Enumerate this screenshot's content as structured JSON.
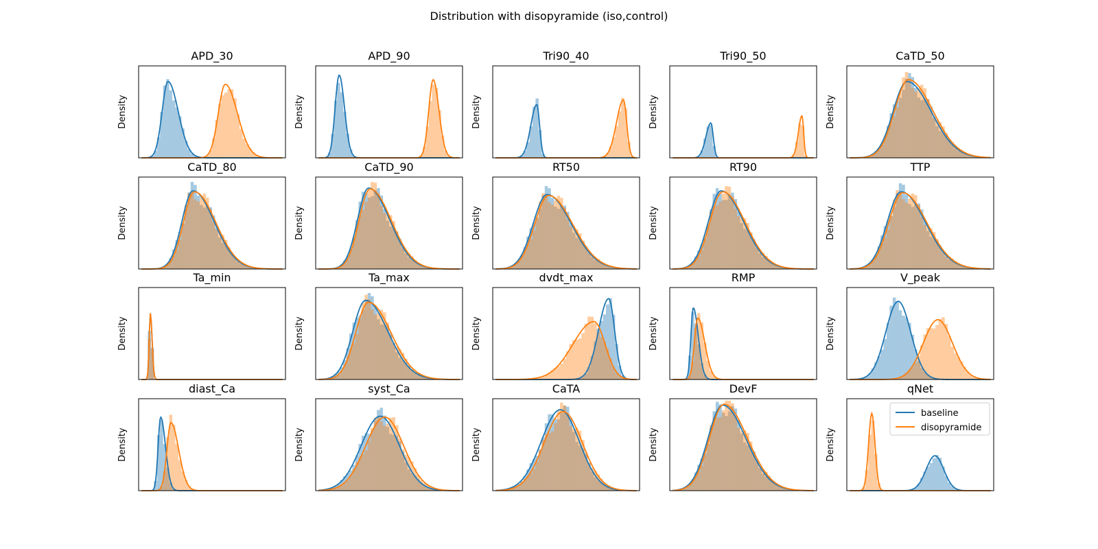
{
  "chart_data": {
    "type": "histogram-kde-grid",
    "title": "Distribution with disopyramide (iso,control)",
    "ylabel": "Density",
    "grid": false,
    "legend": {
      "placement": "upper-right",
      "panel": "qNet"
    },
    "series": [
      {
        "name": "baseline",
        "color": "#1f77b4"
      },
      {
        "name": "disopyramide",
        "color": "#ff7f0e"
      }
    ],
    "x_domain": [
      0,
      1
    ],
    "panels": [
      {
        "title": "APD_30",
        "baseline": {
          "mu": 0.2,
          "sd": 0.055,
          "peak": 0.83,
          "skew": 0.6
        },
        "disopyramide": {
          "mu": 0.59,
          "sd": 0.065,
          "peak": 0.8,
          "skew": 0.6
        }
      },
      {
        "title": "APD_90",
        "baseline": {
          "mu": 0.16,
          "sd": 0.032,
          "peak": 0.9,
          "skew": 0.3
        },
        "disopyramide": {
          "mu": 0.8,
          "sd": 0.035,
          "peak": 0.85,
          "skew": 0.3
        }
      },
      {
        "title": "Tri90_40",
        "baseline": {
          "mu": 0.3,
          "sd": 0.03,
          "peak": 0.58,
          "skew": -0.8
        },
        "disopyramide": {
          "mu": 0.89,
          "sd": 0.035,
          "peak": 0.63,
          "skew": -0.8
        }
      },
      {
        "title": "Tri90_50",
        "baseline": {
          "mu": 0.28,
          "sd": 0.025,
          "peak": 0.38,
          "skew": -0.8
        },
        "disopyramide": {
          "mu": 0.9,
          "sd": 0.018,
          "peak": 0.46,
          "skew": -0.8
        }
      },
      {
        "title": "CaTD_50",
        "baseline": {
          "mu": 0.41,
          "sd": 0.13,
          "peak": 0.83,
          "skew": 0.6
        },
        "disopyramide": {
          "mu": 0.42,
          "sd": 0.13,
          "peak": 0.85,
          "skew": 0.6
        }
      },
      {
        "title": "CaTD_80",
        "baseline": {
          "mu": 0.37,
          "sd": 0.11,
          "peak": 0.85,
          "skew": 0.7
        },
        "disopyramide": {
          "mu": 0.38,
          "sd": 0.11,
          "peak": 0.84,
          "skew": 0.7
        }
      },
      {
        "title": "CaTD_90",
        "baseline": {
          "mu": 0.36,
          "sd": 0.11,
          "peak": 0.88,
          "skew": 0.7
        },
        "disopyramide": {
          "mu": 0.37,
          "sd": 0.11,
          "peak": 0.87,
          "skew": 0.7
        }
      },
      {
        "title": "RT50",
        "baseline": {
          "mu": 0.37,
          "sd": 0.13,
          "peak": 0.81,
          "skew": 0.6
        },
        "disopyramide": {
          "mu": 0.38,
          "sd": 0.13,
          "peak": 0.8,
          "skew": 0.6
        }
      },
      {
        "title": "RT90",
        "baseline": {
          "mu": 0.35,
          "sd": 0.12,
          "peak": 0.85,
          "skew": 0.6
        },
        "disopyramide": {
          "mu": 0.36,
          "sd": 0.12,
          "peak": 0.84,
          "skew": 0.6
        }
      },
      {
        "title": "TTP",
        "baseline": {
          "mu": 0.37,
          "sd": 0.13,
          "peak": 0.84,
          "skew": 0.6
        },
        "disopyramide": {
          "mu": 0.38,
          "sd": 0.13,
          "peak": 0.83,
          "skew": 0.6
        }
      },
      {
        "title": "Ta_min",
        "baseline": {
          "mu": 0.08,
          "sd": 0.01,
          "peak": 0.72,
          "skew": 0.4
        },
        "disopyramide": {
          "mu": 0.08,
          "sd": 0.01,
          "peak": 0.72,
          "skew": 0.4
        }
      },
      {
        "title": "Ta_max",
        "baseline": {
          "mu": 0.34,
          "sd": 0.12,
          "peak": 0.86,
          "skew": 0.6
        },
        "disopyramide": {
          "mu": 0.36,
          "sd": 0.12,
          "peak": 0.84,
          "skew": 0.6
        }
      },
      {
        "title": "dvdt_max",
        "baseline": {
          "mu": 0.79,
          "sd": 0.055,
          "peak": 0.88,
          "skew": -0.6
        },
        "disopyramide": {
          "mu": 0.69,
          "sd": 0.11,
          "peak": 0.63,
          "skew": -0.7
        }
      },
      {
        "title": "RMP",
        "baseline": {
          "mu": 0.16,
          "sd": 0.025,
          "peak": 0.78,
          "skew": 0.8
        },
        "disopyramide": {
          "mu": 0.19,
          "sd": 0.035,
          "peak": 0.67,
          "skew": 0.8
        }
      },
      {
        "title": "V_peak",
        "baseline": {
          "mu": 0.35,
          "sd": 0.085,
          "peak": 0.85,
          "skew": 0.0
        },
        "disopyramide": {
          "mu": 0.62,
          "sd": 0.1,
          "peak": 0.65,
          "skew": 0.0
        }
      },
      {
        "title": "diast_Ca",
        "baseline": {
          "mu": 0.15,
          "sd": 0.025,
          "peak": 0.8,
          "skew": 0.7
        },
        "disopyramide": {
          "mu": 0.22,
          "sd": 0.04,
          "peak": 0.74,
          "skew": 0.7
        }
      },
      {
        "title": "syst_Ca",
        "baseline": {
          "mu": 0.44,
          "sd": 0.13,
          "peak": 0.81,
          "skew": 0.0
        },
        "disopyramide": {
          "mu": 0.47,
          "sd": 0.13,
          "peak": 0.8,
          "skew": 0.0
        }
      },
      {
        "title": "CaTA",
        "baseline": {
          "mu": 0.46,
          "sd": 0.13,
          "peak": 0.88,
          "skew": 0.0
        },
        "disopyramide": {
          "mu": 0.48,
          "sd": 0.13,
          "peak": 0.86,
          "skew": 0.0
        }
      },
      {
        "title": "DevF",
        "baseline": {
          "mu": 0.36,
          "sd": 0.13,
          "peak": 0.93,
          "skew": 0.5
        },
        "disopyramide": {
          "mu": 0.37,
          "sd": 0.13,
          "peak": 0.94,
          "skew": 0.5
        }
      },
      {
        "title": "qNet",
        "baseline": {
          "mu": 0.6,
          "sd": 0.06,
          "peak": 0.38,
          "skew": 0.0
        },
        "disopyramide": {
          "mu": 0.17,
          "sd": 0.022,
          "peak": 0.84,
          "skew": 0.0
        }
      }
    ]
  }
}
